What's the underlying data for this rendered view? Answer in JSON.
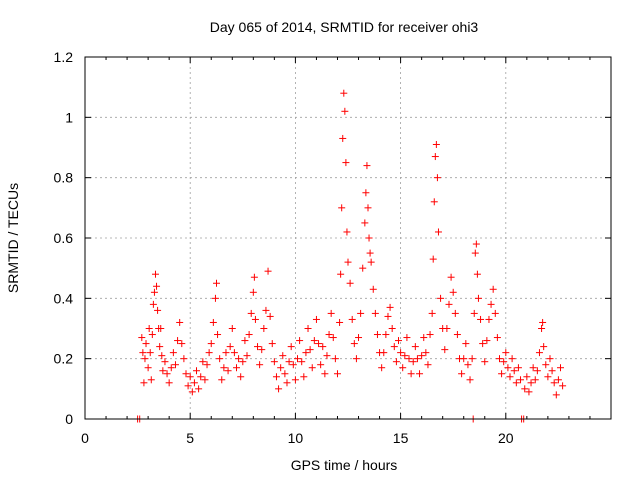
{
  "chart_data": {
    "type": "scatter",
    "title": "Day 065 of 2014, SRMTID for receiver ohi3",
    "xlabel": "GPS time / hours",
    "ylabel": "SRMTID / TECUs",
    "xlim": [
      0,
      25
    ],
    "ylim": [
      0,
      1.2
    ],
    "xticks": [
      "0",
      "5",
      "10",
      "15",
      "20"
    ],
    "xtick_values": [
      0,
      5,
      10,
      15,
      20
    ],
    "yticks": [
      "0",
      "0.2",
      "0.4",
      "0.6",
      "0.8",
      "1",
      "1.2"
    ],
    "ytick_values": [
      0,
      0.2,
      0.4,
      0.6,
      0.8,
      1.0,
      1.2
    ],
    "grid": true,
    "marker": "+",
    "color": "#ff0000",
    "series": [
      {
        "name": "ohi3",
        "points": [
          [
            2.5,
            0.0
          ],
          [
            2.6,
            0.0
          ],
          [
            2.7,
            0.27
          ],
          [
            2.75,
            0.22
          ],
          [
            2.8,
            0.12
          ],
          [
            2.85,
            0.2
          ],
          [
            2.9,
            0.25
          ],
          [
            3.0,
            0.17
          ],
          [
            3.05,
            0.3
          ],
          [
            3.1,
            0.22
          ],
          [
            3.15,
            0.13
          ],
          [
            3.2,
            0.28
          ],
          [
            3.25,
            0.38
          ],
          [
            3.3,
            0.42
          ],
          [
            3.35,
            0.48
          ],
          [
            3.4,
            0.44
          ],
          [
            3.45,
            0.36
          ],
          [
            3.5,
            0.3
          ],
          [
            3.55,
            0.24
          ],
          [
            3.6,
            0.3
          ],
          [
            3.65,
            0.21
          ],
          [
            3.7,
            0.16
          ],
          [
            3.8,
            0.19
          ],
          [
            3.9,
            0.15
          ],
          [
            4.0,
            0.12
          ],
          [
            4.1,
            0.17
          ],
          [
            4.2,
            0.22
          ],
          [
            4.3,
            0.18
          ],
          [
            4.4,
            0.26
          ],
          [
            4.5,
            0.32
          ],
          [
            4.6,
            0.25
          ],
          [
            4.7,
            0.2
          ],
          [
            4.8,
            0.15
          ],
          [
            4.9,
            0.11
          ],
          [
            5.0,
            0.14
          ],
          [
            5.1,
            0.09
          ],
          [
            5.2,
            0.12
          ],
          [
            5.3,
            0.16
          ],
          [
            5.4,
            0.1
          ],
          [
            5.5,
            0.14
          ],
          [
            5.6,
            0.19
          ],
          [
            5.7,
            0.13
          ],
          [
            5.8,
            0.18
          ],
          [
            5.9,
            0.22
          ],
          [
            6.0,
            0.25
          ],
          [
            6.1,
            0.32
          ],
          [
            6.2,
            0.4
          ],
          [
            6.25,
            0.45
          ],
          [
            6.3,
            0.28
          ],
          [
            6.4,
            0.2
          ],
          [
            6.5,
            0.13
          ],
          [
            6.6,
            0.17
          ],
          [
            6.7,
            0.22
          ],
          [
            6.8,
            0.16
          ],
          [
            6.9,
            0.24
          ],
          [
            7.0,
            0.3
          ],
          [
            7.1,
            0.22
          ],
          [
            7.2,
            0.17
          ],
          [
            7.3,
            0.2
          ],
          [
            7.4,
            0.14
          ],
          [
            7.5,
            0.19
          ],
          [
            7.6,
            0.26
          ],
          [
            7.7,
            0.21
          ],
          [
            7.8,
            0.28
          ],
          [
            7.9,
            0.35
          ],
          [
            8.0,
            0.42
          ],
          [
            8.05,
            0.47
          ],
          [
            8.1,
            0.33
          ],
          [
            8.2,
            0.24
          ],
          [
            8.3,
            0.18
          ],
          [
            8.4,
            0.23
          ],
          [
            8.5,
            0.3
          ],
          [
            8.6,
            0.36
          ],
          [
            8.7,
            0.49
          ],
          [
            8.8,
            0.34
          ],
          [
            8.9,
            0.25
          ],
          [
            9.0,
            0.19
          ],
          [
            9.1,
            0.14
          ],
          [
            9.2,
            0.1
          ],
          [
            9.3,
            0.17
          ],
          [
            9.4,
            0.21
          ],
          [
            9.5,
            0.15
          ],
          [
            9.6,
            0.12
          ],
          [
            9.7,
            0.19
          ],
          [
            9.8,
            0.24
          ],
          [
            9.9,
            0.18
          ],
          [
            10.0,
            0.13
          ],
          [
            10.1,
            0.2
          ],
          [
            10.2,
            0.26
          ],
          [
            10.3,
            0.19
          ],
          [
            10.4,
            0.14
          ],
          [
            10.5,
            0.22
          ],
          [
            10.6,
            0.3
          ],
          [
            10.7,
            0.23
          ],
          [
            10.8,
            0.17
          ],
          [
            10.9,
            0.26
          ],
          [
            11.0,
            0.33
          ],
          [
            11.1,
            0.25
          ],
          [
            11.2,
            0.18
          ],
          [
            11.3,
            0.24
          ],
          [
            11.4,
            0.15
          ],
          [
            11.5,
            0.21
          ],
          [
            11.6,
            0.28
          ],
          [
            11.7,
            0.35
          ],
          [
            11.8,
            0.27
          ],
          [
            11.9,
            0.2
          ],
          [
            12.0,
            0.15
          ],
          [
            12.1,
            0.32
          ],
          [
            12.15,
            0.48
          ],
          [
            12.2,
            0.7
          ],
          [
            12.25,
            0.93
          ],
          [
            12.3,
            1.08
          ],
          [
            12.35,
            1.02
          ],
          [
            12.4,
            0.85
          ],
          [
            12.45,
            0.62
          ],
          [
            12.5,
            0.52
          ],
          [
            12.6,
            0.45
          ],
          [
            12.7,
            0.33
          ],
          [
            12.8,
            0.25
          ],
          [
            12.9,
            0.2
          ],
          [
            13.0,
            0.27
          ],
          [
            13.1,
            0.35
          ],
          [
            13.2,
            0.5
          ],
          [
            13.3,
            0.65
          ],
          [
            13.35,
            0.75
          ],
          [
            13.4,
            0.84
          ],
          [
            13.45,
            0.7
          ],
          [
            13.5,
            0.6
          ],
          [
            13.55,
            0.55
          ],
          [
            13.6,
            0.52
          ],
          [
            13.7,
            0.43
          ],
          [
            13.8,
            0.35
          ],
          [
            13.9,
            0.28
          ],
          [
            14.0,
            0.22
          ],
          [
            14.1,
            0.17
          ],
          [
            14.2,
            0.22
          ],
          [
            14.3,
            0.28
          ],
          [
            14.4,
            0.34
          ],
          [
            14.5,
            0.37
          ],
          [
            14.6,
            0.3
          ],
          [
            14.7,
            0.24
          ],
          [
            14.8,
            0.19
          ],
          [
            14.9,
            0.26
          ],
          [
            15.0,
            0.22
          ],
          [
            15.1,
            0.17
          ],
          [
            15.2,
            0.21
          ],
          [
            15.3,
            0.27
          ],
          [
            15.4,
            0.2
          ],
          [
            15.5,
            0.15
          ],
          [
            15.6,
            0.19
          ],
          [
            15.7,
            0.24
          ],
          [
            15.8,
            0.2
          ],
          [
            15.9,
            0.15
          ],
          [
            16.0,
            0.21
          ],
          [
            16.1,
            0.27
          ],
          [
            16.2,
            0.22
          ],
          [
            16.3,
            0.18
          ],
          [
            16.4,
            0.28
          ],
          [
            16.5,
            0.35
          ],
          [
            16.55,
            0.53
          ],
          [
            16.6,
            0.72
          ],
          [
            16.65,
            0.87
          ],
          [
            16.7,
            0.91
          ],
          [
            16.75,
            0.8
          ],
          [
            16.8,
            0.62
          ],
          [
            16.9,
            0.4
          ],
          [
            17.0,
            0.3
          ],
          [
            17.1,
            0.23
          ],
          [
            17.2,
            0.3
          ],
          [
            17.3,
            0.38
          ],
          [
            17.4,
            0.47
          ],
          [
            17.5,
            0.42
          ],
          [
            17.6,
            0.35
          ],
          [
            17.7,
            0.28
          ],
          [
            17.8,
            0.2
          ],
          [
            17.9,
            0.15
          ],
          [
            18.0,
            0.2
          ],
          [
            18.1,
            0.25
          ],
          [
            18.2,
            0.18
          ],
          [
            18.3,
            0.13
          ],
          [
            18.4,
            0.2
          ],
          [
            18.45,
            0.0
          ],
          [
            18.5,
            0.35
          ],
          [
            18.55,
            0.55
          ],
          [
            18.6,
            0.58
          ],
          [
            18.65,
            0.48
          ],
          [
            18.7,
            0.4
          ],
          [
            18.8,
            0.33
          ],
          [
            18.9,
            0.25
          ],
          [
            19.0,
            0.19
          ],
          [
            19.1,
            0.26
          ],
          [
            19.2,
            0.33
          ],
          [
            19.3,
            0.38
          ],
          [
            19.4,
            0.43
          ],
          [
            19.5,
            0.35
          ],
          [
            19.6,
            0.27
          ],
          [
            19.7,
            0.2
          ],
          [
            19.8,
            0.15
          ],
          [
            19.9,
            0.19
          ],
          [
            20.0,
            0.22
          ],
          [
            20.1,
            0.17
          ],
          [
            20.2,
            0.14
          ],
          [
            20.3,
            0.2
          ],
          [
            20.4,
            0.16
          ],
          [
            20.5,
            0.12
          ],
          [
            20.6,
            0.17
          ],
          [
            20.7,
            0.13
          ],
          [
            20.75,
            0.0
          ],
          [
            20.85,
            0.0
          ],
          [
            20.9,
            0.1
          ],
          [
            21.0,
            0.14
          ],
          [
            21.1,
            0.09
          ],
          [
            21.2,
            0.12
          ],
          [
            21.3,
            0.17
          ],
          [
            21.4,
            0.13
          ],
          [
            21.5,
            0.16
          ],
          [
            21.6,
            0.22
          ],
          [
            21.7,
            0.3
          ],
          [
            21.75,
            0.32
          ],
          [
            21.8,
            0.24
          ],
          [
            21.9,
            0.18
          ],
          [
            22.0,
            0.14
          ],
          [
            22.1,
            0.2
          ],
          [
            22.2,
            0.16
          ],
          [
            22.3,
            0.12
          ],
          [
            22.4,
            0.08
          ],
          [
            22.5,
            0.13
          ],
          [
            22.6,
            0.17
          ],
          [
            22.7,
            0.11
          ]
        ]
      }
    ]
  }
}
